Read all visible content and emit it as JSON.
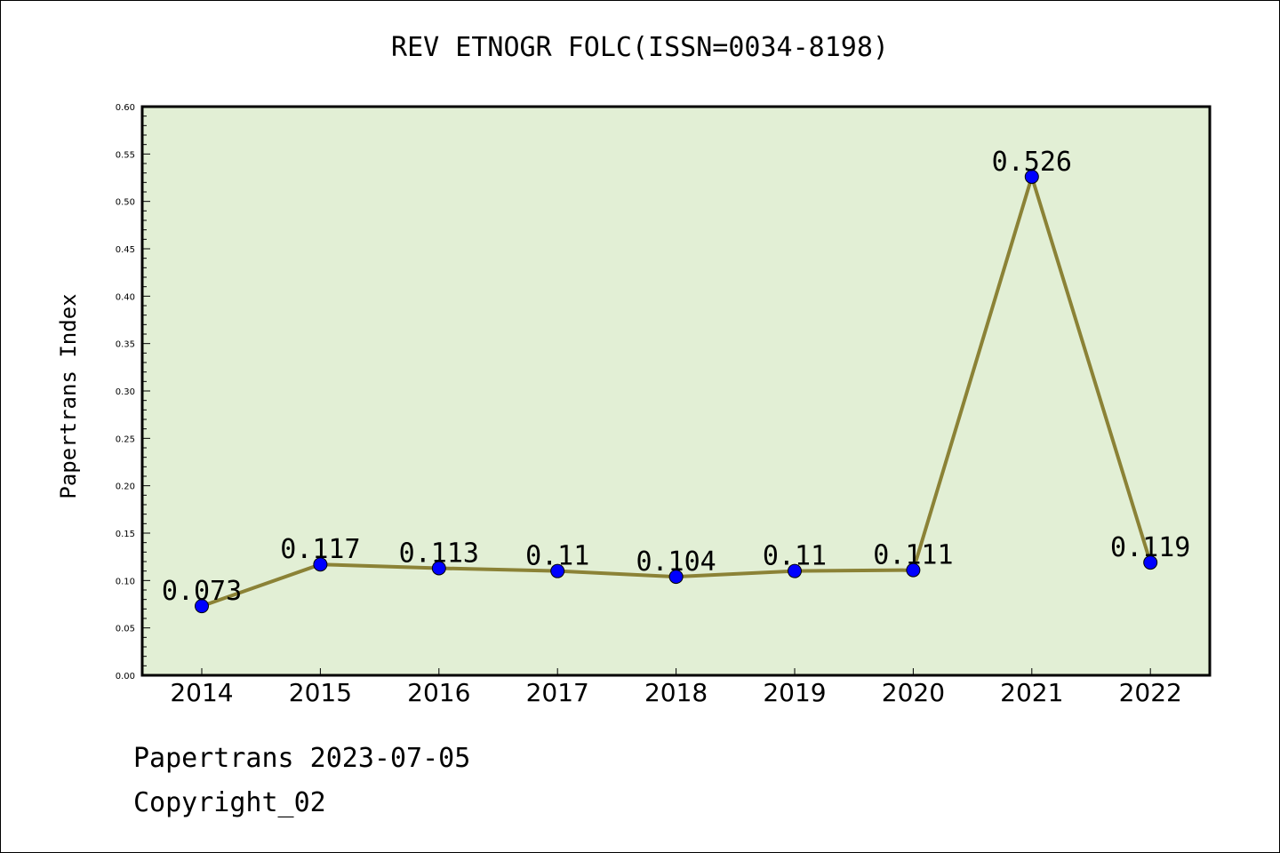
{
  "chart_data": {
    "type": "line",
    "title": "REV ETNOGR FOLC(ISSN=0034-8198)",
    "xlabel": "",
    "ylabel": "Papertrans Index",
    "categories": [
      "2014",
      "2015",
      "2016",
      "2017",
      "2018",
      "2019",
      "2020",
      "2021",
      "2022"
    ],
    "series": [
      {
        "values": [
          0.073,
          0.117,
          0.113,
          0.11,
          0.104,
          0.11,
          0.111,
          0.526,
          0.119
        ],
        "data_labels": [
          "0.073",
          "0.117",
          "0.113",
          "0.11",
          "0.104",
          "0.11",
          "0.111",
          "0.526",
          "0.119"
        ],
        "line_color": "#8b8236",
        "marker_color": "#0000ff"
      }
    ],
    "ylim": [
      0,
      0.6
    ],
    "yticks": [
      0.0,
      0.05,
      0.1,
      0.15,
      0.2,
      0.25,
      0.3,
      0.35,
      0.4,
      0.45,
      0.5,
      0.55,
      0.6
    ],
    "ytick_labels": [
      "0.00",
      "0.05",
      "0.10",
      "0.15",
      "0.20",
      "0.25",
      "0.30",
      "0.35",
      "0.40",
      "0.45",
      "0.50",
      "0.55",
      "0.60"
    ],
    "plot_background": "#e2efd5",
    "grid": false,
    "legend": "none"
  },
  "footer": {
    "line1": "Papertrans 2023-07-05",
    "line2": "Copyright_02"
  }
}
